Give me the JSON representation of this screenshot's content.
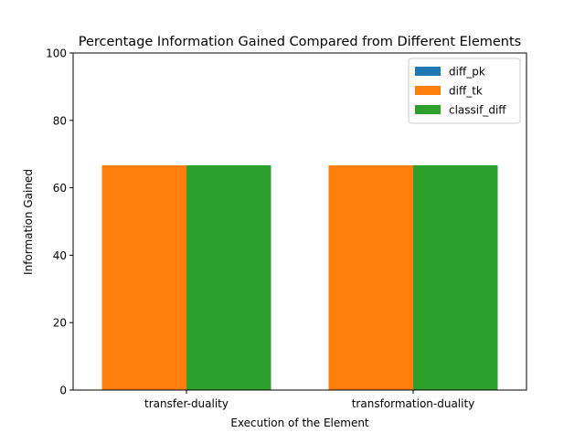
{
  "chart_data": {
    "type": "bar",
    "title": "Percentage Information Gained Compared from Different Elements",
    "xlabel": "Execution of the Element",
    "ylabel": "Information Gained",
    "categories": [
      "transfer-duality",
      "transformation-duality"
    ],
    "series": [
      {
        "name": "diff_pk",
        "values": [
          0,
          0
        ],
        "color": "#1f77b4"
      },
      {
        "name": "diff_tk",
        "values": [
          66.67,
          66.67
        ],
        "color": "#ff7f0e"
      },
      {
        "name": "classif_diff",
        "values": [
          66.67,
          66.67
        ],
        "color": "#2ca02c"
      }
    ],
    "ylim": [
      0,
      100
    ],
    "yticks": [
      0,
      20,
      40,
      60,
      80,
      100
    ],
    "grid": false,
    "legend_position": "top-right"
  }
}
